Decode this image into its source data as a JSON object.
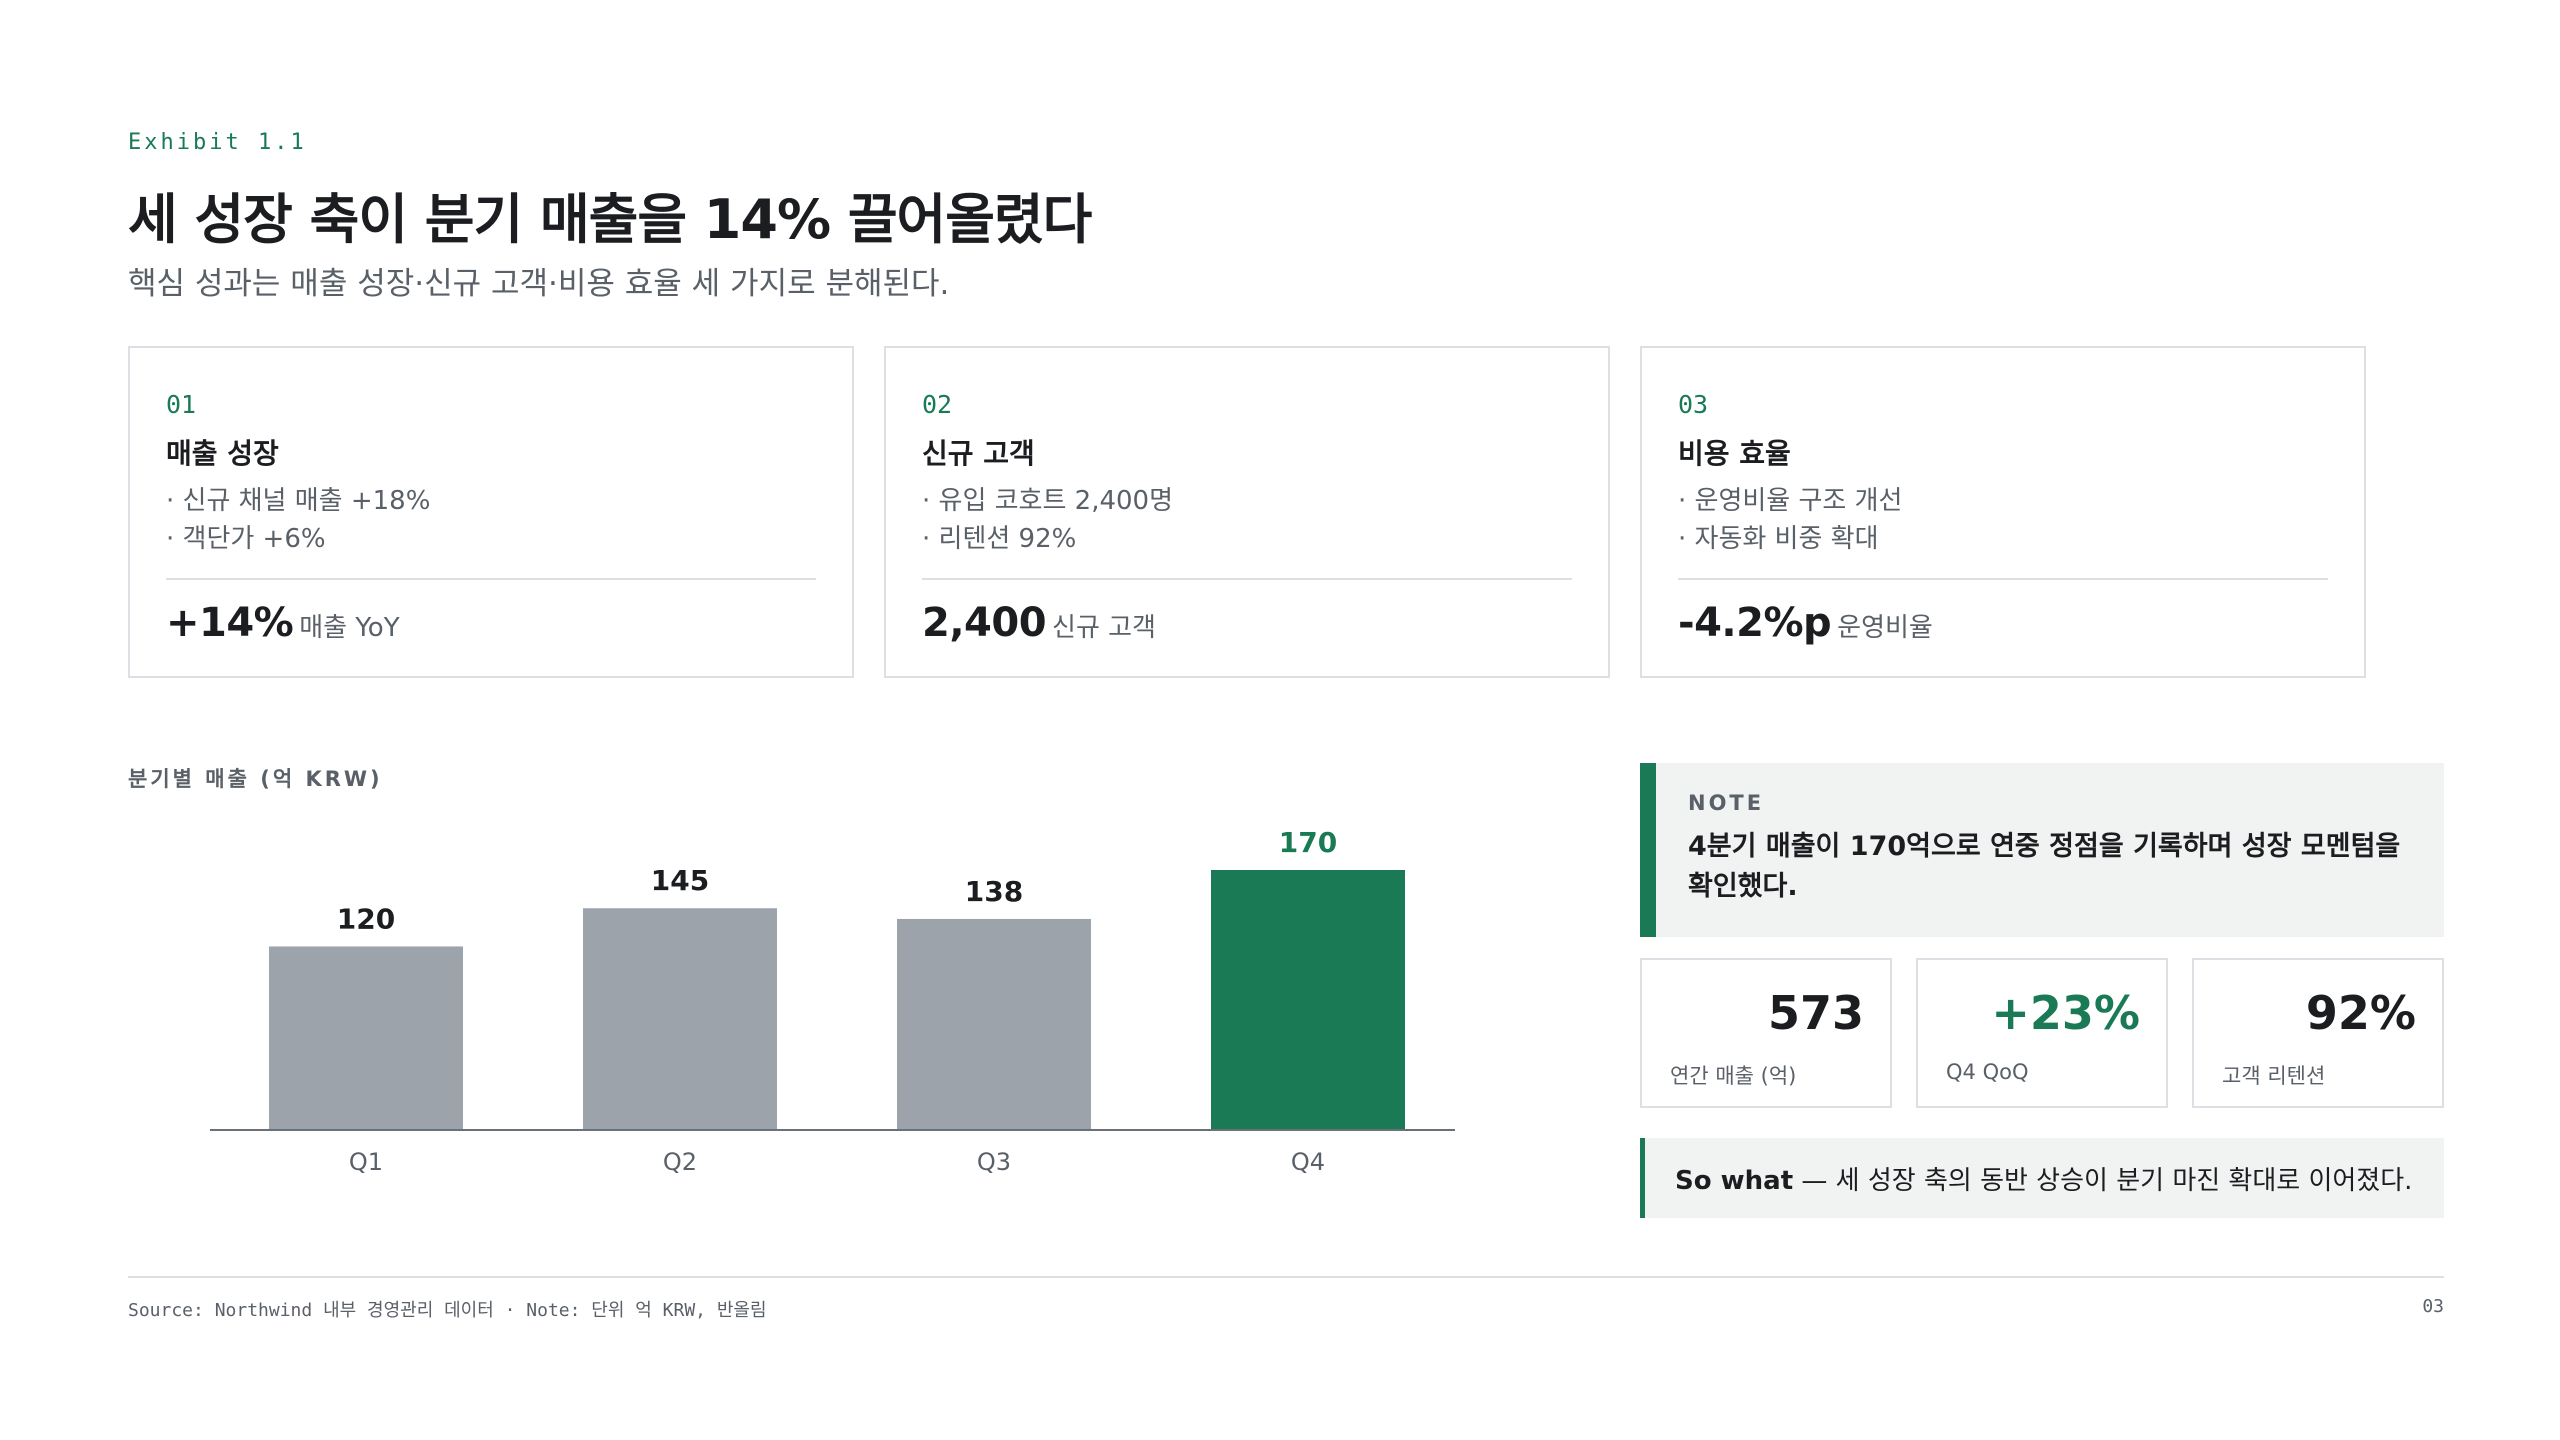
{
  "header": {
    "exhibit": "Exhibit 1.1",
    "title": "세 성장 축이 분기 매출을 14% 끌어올렸다",
    "subtitle": "핵심 성과는 매출 성장·신규 고객·비용 효율 세 가지로 분해된다."
  },
  "cards": [
    {
      "num": "01",
      "title": "매출 성장",
      "bullets": [
        "· 신규 채널 매출 +18%",
        "· 객단가 +6%"
      ],
      "kpi_value": "+14%",
      "kpi_label": "매출 YoY"
    },
    {
      "num": "02",
      "title": "신규 고객",
      "bullets": [
        "· 유입 코호트 2,400명",
        "· 리텐션 92%"
      ],
      "kpi_value": "2,400",
      "kpi_label": "신규 고객"
    },
    {
      "num": "03",
      "title": "비용 효율",
      "bullets": [
        "· 운영비율 구조 개선",
        "· 자동화 비중 확대"
      ],
      "kpi_value": "-4.2%p",
      "kpi_label": "운영비율"
    }
  ],
  "chart_data": {
    "type": "bar",
    "title": "분기별 매출 (억 KRW)",
    "categories": [
      "Q1",
      "Q2",
      "Q3",
      "Q4"
    ],
    "values": [
      120,
      145,
      138,
      170
    ],
    "highlight_index": 3,
    "colors": {
      "default": "#9ca3ab",
      "highlight": "#1a7a55",
      "label": "#1b1d20",
      "highlight_label": "#1a7a55"
    },
    "ylim": [
      0,
      170
    ],
    "grid": false,
    "legend": "none"
  },
  "note": {
    "label": "NOTE",
    "text": "4분기 매출이 170억으로 연중 정점을 기록하며 성장 모멘텀을 확인했다."
  },
  "stats": [
    {
      "value": "573",
      "label": "연간 매출 (억)",
      "highlight": false
    },
    {
      "value": "+23%",
      "label": "Q4 QoQ",
      "highlight": true
    },
    {
      "value": "92%",
      "label": "고객 리텐션",
      "highlight": false
    }
  ],
  "sowhat": {
    "lead": "So what",
    "text": " — 세 성장 축의 동반 상승이 분기 마진 확대로 이어졌다."
  },
  "footer": {
    "source": "Source: Northwind 내부 경영관리 데이터 · Note: 단위 억 KRW, 반올림",
    "page": "03"
  }
}
